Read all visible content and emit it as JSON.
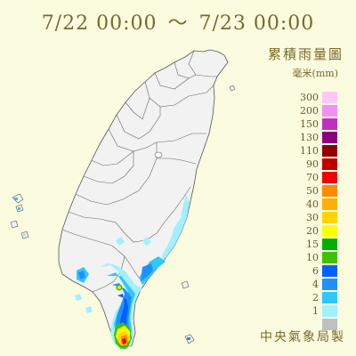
{
  "title": {
    "start": "7/22 00:00",
    "separator": "～",
    "end": "7/23 00:00"
  },
  "legend": {
    "title": "累積雨量圖",
    "unit": "毫米(mm)",
    "items": [
      {
        "label": "300",
        "color": "#fdc8f8"
      },
      {
        "label": "200",
        "color": "#f090f0"
      },
      {
        "label": "150",
        "color": "#c030c0"
      },
      {
        "label": "130",
        "color": "#8a0080"
      },
      {
        "label": "110",
        "color": "#900000"
      },
      {
        "label": "90",
        "color": "#c00000"
      },
      {
        "label": "70",
        "color": "#f00000"
      },
      {
        "label": "50",
        "color": "#ff8a00"
      },
      {
        "label": "40",
        "color": "#ffb000"
      },
      {
        "label": "30",
        "color": "#ffd400"
      },
      {
        "label": "20",
        "color": "#ffff00"
      },
      {
        "label": "15",
        "color": "#00b000"
      },
      {
        "label": "10",
        "color": "#40c000"
      },
      {
        "label": "6",
        "color": "#0060ff"
      },
      {
        "label": "4",
        "color": "#2090ff"
      },
      {
        "label": "2",
        "color": "#30c8f8"
      },
      {
        "label": "1",
        "color": "#a0f0ff"
      },
      {
        "label": "",
        "color": "#c0c0c0"
      }
    ]
  },
  "credit": "中央氣象局製",
  "colors": {
    "background": "#fbfbe0",
    "land": "#f2f2f2",
    "border": "#555555"
  }
}
